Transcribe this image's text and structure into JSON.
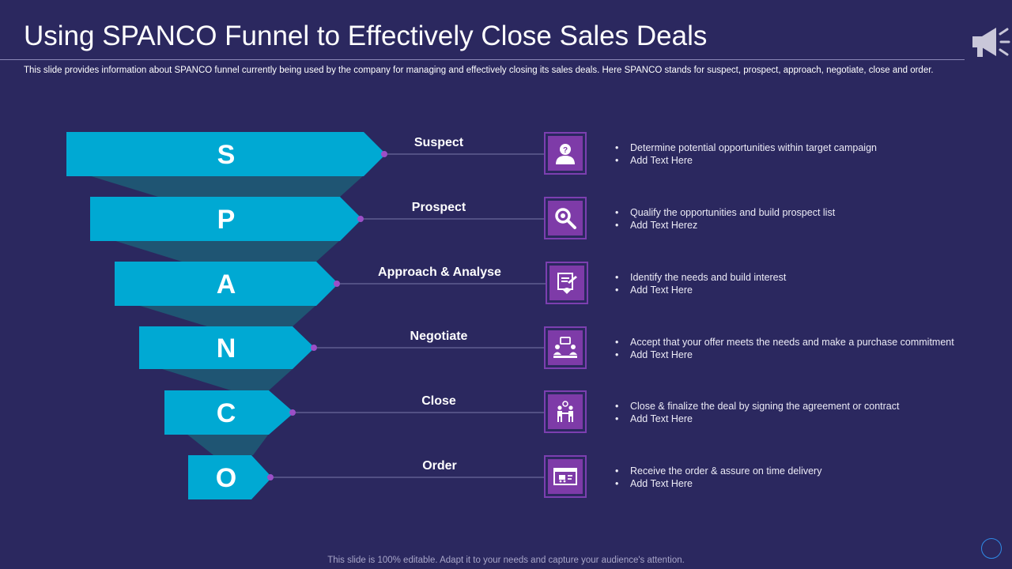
{
  "title": "Using SPANCO Funnel to Effectively Close Sales Deals",
  "subtitle": "This slide provides information about SPANCO funnel currently being used by the company for managing and effectively closing its sales deals. Here SPANCO stands for suspect, prospect, approach, negotiate, close and order.",
  "footer": "This slide is 100% editable. Adapt it to your needs and capture your audience's attention.",
  "colors": {
    "background": "#2b285f",
    "arrow": "#00a9d3",
    "arrow_shadow": "#1f5573",
    "icon_fill": "#7e3ba8",
    "connector_dot": "#9b4fc7"
  },
  "stages": [
    {
      "letter": "S",
      "label": "Suspect",
      "icon": "user-question-icon",
      "bullets": [
        "Determine potential opportunities within target campaign",
        "Add Text Here"
      ]
    },
    {
      "letter": "P",
      "label": "Prospect",
      "icon": "search-icon",
      "bullets": [
        "Qualify the opportunities and build prospect list",
        "Add Text Herez"
      ]
    },
    {
      "letter": "A",
      "label": "Approach & Analyse",
      "icon": "document-pen-icon",
      "bullets": [
        "Identify the needs and build interest",
        "Add Text Here"
      ]
    },
    {
      "letter": "N",
      "label": "Negotiate",
      "icon": "meeting-chat-icon",
      "bullets": [
        "Accept that your offer meets the needs and make a purchase commitment",
        "Add Text Here"
      ]
    },
    {
      "letter": "C",
      "label": "Close",
      "icon": "handshake-icon",
      "bullets": [
        "Close & finalize the deal by signing the agreement or contract",
        "Add Text Here"
      ]
    },
    {
      "letter": "O",
      "label": "Order",
      "icon": "browser-order-icon",
      "bullets": [
        "Receive the order & assure on time delivery",
        "Add Text Here"
      ]
    }
  ]
}
